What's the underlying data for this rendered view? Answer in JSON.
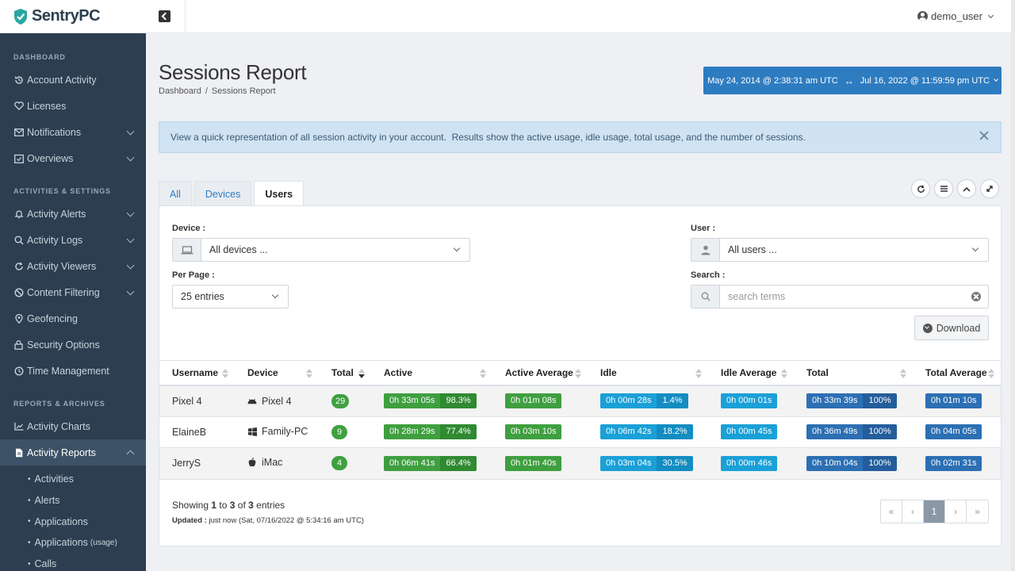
{
  "brand": {
    "name": "SentryPC"
  },
  "sidebar": {
    "sections": [
      {
        "title": "Dashboard"
      },
      {
        "title": "Activities & Settings"
      },
      {
        "title": "Reports & Archives"
      }
    ],
    "items": [
      {
        "label": "Account Activity",
        "icon": "history-icon"
      },
      {
        "label": "Licenses",
        "icon": "heart-icon"
      },
      {
        "label": "Notifications",
        "icon": "envelope-icon"
      },
      {
        "label": "Overviews",
        "icon": "checkbox-icon"
      },
      {
        "label": "Activity Alerts",
        "icon": "bell-icon"
      },
      {
        "label": "Activity Logs",
        "icon": "search-icon"
      },
      {
        "label": "Activity Viewers",
        "icon": "refresh-icon"
      },
      {
        "label": "Content Filtering",
        "icon": "ban-icon"
      },
      {
        "label": "Geofencing",
        "icon": "map-pin-icon"
      },
      {
        "label": "Security Options",
        "icon": "lock-icon"
      },
      {
        "label": "Time Management",
        "icon": "clock-icon"
      },
      {
        "label": "Activity Charts",
        "icon": "chart-icon"
      },
      {
        "label": "Activity Reports",
        "icon": "document-icon"
      }
    ],
    "sub_items": [
      {
        "label": "Activities"
      },
      {
        "label": "Alerts"
      },
      {
        "label": "Applications"
      },
      {
        "label": "Applications",
        "note": "(usage)"
      },
      {
        "label": "Calls"
      }
    ]
  },
  "topbar": {
    "username": "demo_user"
  },
  "page": {
    "title": "Sessions Report",
    "breadcrumb": [
      "Dashboard",
      "Sessions Report"
    ],
    "date_from": "May 24, 2014 @ 2:38:31 am UTC",
    "date_to": "Jul 16, 2022 @ 11:59:59 pm UTC"
  },
  "info": {
    "text": "View a quick representation of all session activity in your account.  Results show the active usage, idle usage, total usage, and the number of sessions."
  },
  "tabs": [
    {
      "label": "All"
    },
    {
      "label": "Devices"
    },
    {
      "label": "Users"
    }
  ],
  "filters": {
    "device_label": "Device :",
    "device_value": "All devices ...",
    "user_label": "User :",
    "user_value": "All users ...",
    "per_page_label": "Per Page :",
    "per_page_value": "25 entries",
    "search_label": "Search :",
    "search_placeholder": "search terms",
    "download_label": "Download"
  },
  "table": {
    "headers": [
      "Username",
      "Device",
      "Total",
      "Active",
      "Active Average",
      "Idle",
      "Idle Average",
      "Total",
      "Total Average"
    ],
    "rows": [
      {
        "username": "Pixel 4",
        "device": "Pixel 4",
        "device_icon": "android-icon",
        "total": "29",
        "active": "0h 33m 05s",
        "active_pct": "98.3%",
        "active_avg": "0h 01m 08s",
        "idle": "0h 00m 28s",
        "idle_pct": "1.4%",
        "idle_avg": "0h 00m 01s",
        "sum": "0h 33m 39s",
        "sum_pct": "100%",
        "sum_avg": "0h 01m 10s"
      },
      {
        "username": "ElaineB",
        "device": "Family-PC",
        "device_icon": "windows-icon",
        "total": "9",
        "active": "0h 28m 29s",
        "active_pct": "77.4%",
        "active_avg": "0h 03m 10s",
        "idle": "0h 06m 42s",
        "idle_pct": "18.2%",
        "idle_avg": "0h 00m 45s",
        "sum": "0h 36m 49s",
        "sum_pct": "100%",
        "sum_avg": "0h 04m 05s"
      },
      {
        "username": "JerryS",
        "device": "iMac",
        "device_icon": "apple-icon",
        "total": "4",
        "active": "0h 06m 41s",
        "active_pct": "66.4%",
        "active_avg": "0h 01m 40s",
        "idle": "0h 03m 04s",
        "idle_pct": "30.5%",
        "idle_avg": "0h 00m 46s",
        "sum": "0h 10m 04s",
        "sum_pct": "100%",
        "sum_avg": "0h 02m 31s"
      }
    ]
  },
  "footer": {
    "showing_prefix": "Showing ",
    "from": "1",
    "to_word": " to ",
    "to": "3",
    "of_word": " of ",
    "of": "3",
    "entries_word": " entries",
    "updated_label": "Updated :",
    "updated_text": " just now (Sat, 07/16/2022 @ 5:34:16 am UTC)"
  },
  "pagination": {
    "first": "«",
    "prev": "‹",
    "current": "1",
    "next": "›",
    "last": "»"
  }
}
